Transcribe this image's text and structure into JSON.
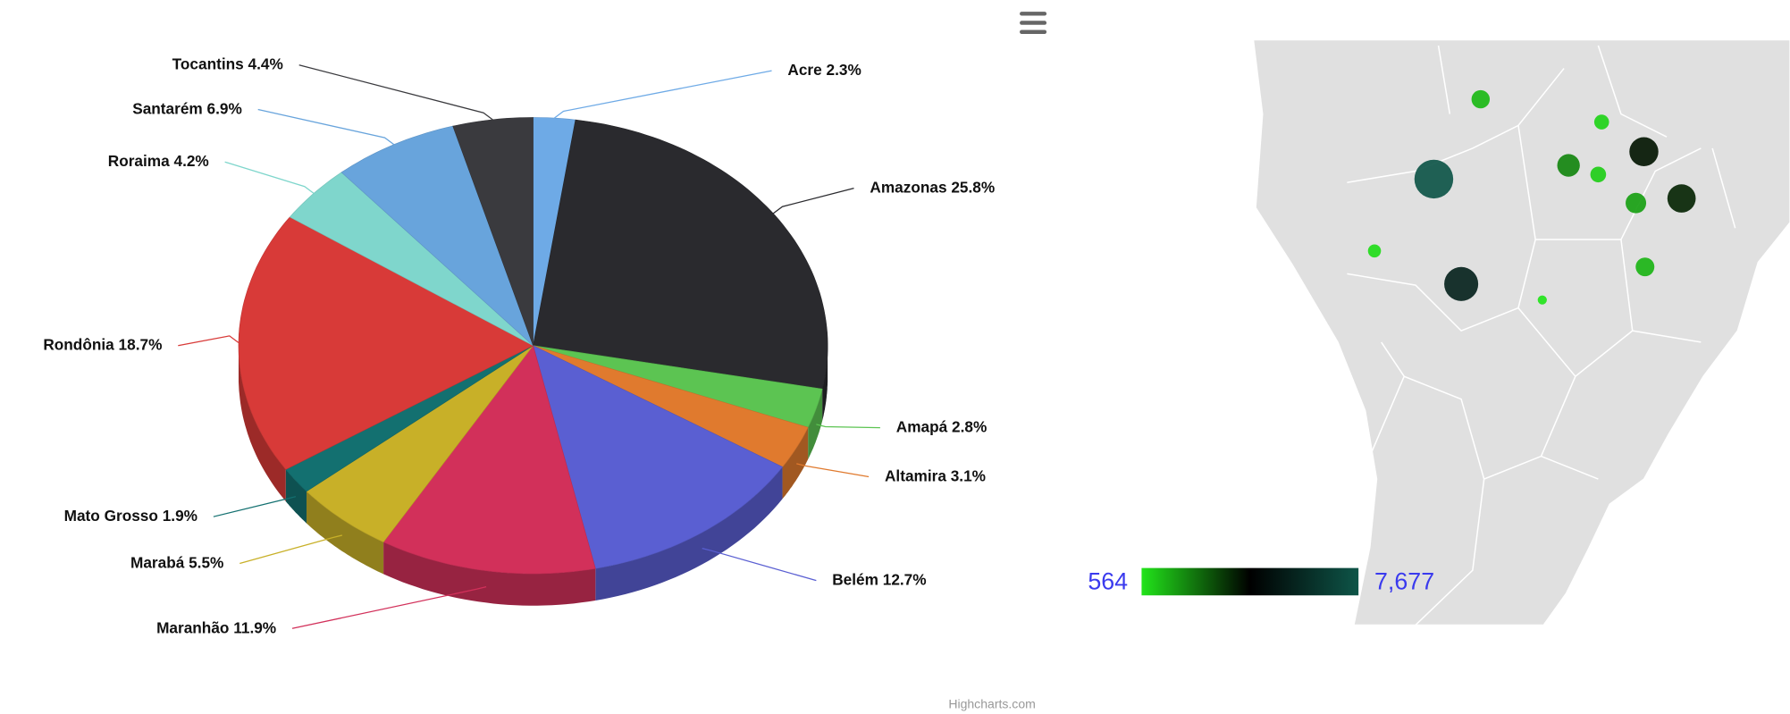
{
  "chart_data": [
    {
      "type": "pie3d",
      "categories": [
        "Acre",
        "Amazonas",
        "Amapá",
        "Altamira",
        "Belém",
        "Maranhão",
        "Marabá",
        "Mato Grosso",
        "Rondônia",
        "Roraima",
        "Santarém",
        "Tocantins"
      ],
      "values": [
        2.3,
        25.8,
        2.8,
        3.1,
        12.7,
        11.9,
        5.5,
        1.9,
        18.7,
        4.2,
        6.9,
        4.4
      ],
      "value_labels": [
        "2.3%",
        "25.8%",
        "2.8%",
        "3.1%",
        "12.7%",
        "11.9%",
        "5.5%",
        "1.9%",
        "18.7%",
        "4.2%",
        "6.9%",
        "4.4%"
      ],
      "colors": [
        "#6eaae6",
        "#2a2a2e",
        "#5cc452",
        "#e07a2e",
        "#5a5fd2",
        "#d2305a",
        "#c8b028",
        "#137070",
        "#d83a38",
        "#7fd6cc",
        "#68a4dc",
        "#3a3a3e"
      ],
      "credit": "Highcharts.com"
    },
    {
      "type": "bubble_map",
      "values": [
        7677,
        5565,
        684,
        1250,
        833,
        3779,
        3541,
        2053,
        922,
        1637,
        1309,
        564
      ],
      "colorlim": [
        564,
        7677
      ],
      "colorticks": [
        564,
        {
          "value": 7677,
          "label": "7,677"
        }
      ],
      "colors": [
        "#22e41a",
        "#000000",
        "#0e5548"
      ]
    }
  ]
}
